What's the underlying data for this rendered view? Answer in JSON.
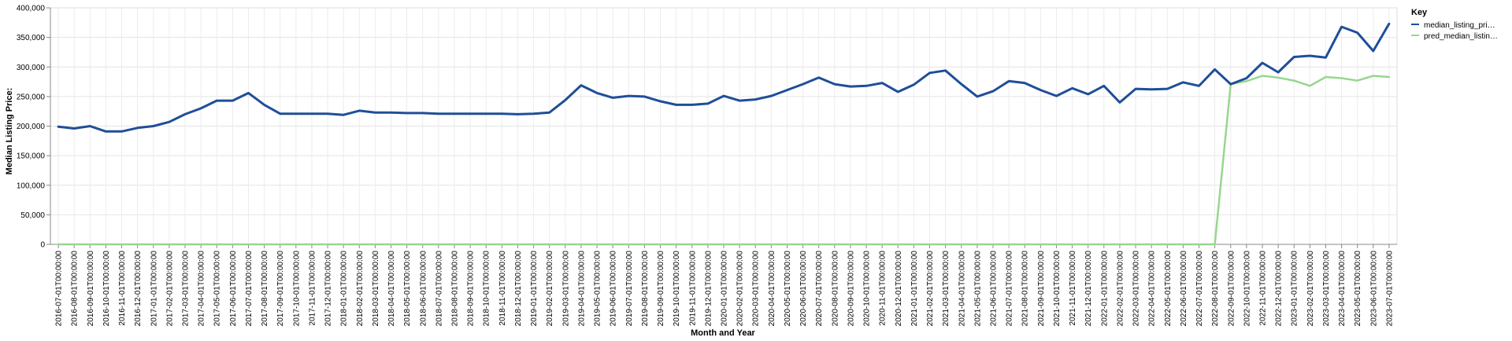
{
  "chart_data": {
    "type": "line",
    "xlabel": "Month and Year",
    "ylabel": "Median Listing Price:",
    "ylim": [
      0,
      400000
    ],
    "yticks": [
      "0",
      "50,000",
      "100,000",
      "150,000",
      "200,000",
      "250,000",
      "300,000",
      "350,000",
      "400,000"
    ],
    "grid": true,
    "legend": {
      "title": "Key",
      "placement": "top-right",
      "entries": [
        "median_listing_pri…",
        "pred_median_listin…"
      ]
    },
    "colors": [
      "#1f4e99",
      "#98d68f"
    ],
    "x": [
      "2016-07-01T00:00:00",
      "2016-08-01T00:00:00",
      "2016-09-01T00:00:00",
      "2016-10-01T00:00:00",
      "2016-11-01T00:00:00",
      "2016-12-01T00:00:00",
      "2017-01-01T00:00:00",
      "2017-02-01T00:00:00",
      "2017-03-01T00:00:00",
      "2017-04-01T00:00:00",
      "2017-05-01T00:00:00",
      "2017-06-01T00:00:00",
      "2017-07-01T00:00:00",
      "2017-08-01T00:00:00",
      "2017-09-01T00:00:00",
      "2017-10-01T00:00:00",
      "2017-11-01T00:00:00",
      "2017-12-01T00:00:00",
      "2018-01-01T00:00:00",
      "2018-02-01T00:00:00",
      "2018-03-01T00:00:00",
      "2018-04-01T00:00:00",
      "2018-05-01T00:00:00",
      "2018-06-01T00:00:00",
      "2018-07-01T00:00:00",
      "2018-08-01T00:00:00",
      "2018-09-01T00:00:00",
      "2018-10-01T00:00:00",
      "2018-11-01T00:00:00",
      "2018-12-01T00:00:00",
      "2019-01-01T00:00:00",
      "2019-02-01T00:00:00",
      "2019-03-01T00:00:00",
      "2019-04-01T00:00:00",
      "2019-05-01T00:00:00",
      "2019-06-01T00:00:00",
      "2019-07-01T00:00:00",
      "2019-08-01T00:00:00",
      "2019-09-01T00:00:00",
      "2019-10-01T00:00:00",
      "2019-11-01T00:00:00",
      "2019-12-01T00:00:00",
      "2020-01-01T00:00:00",
      "2020-02-01T00:00:00",
      "2020-03-01T00:00:00",
      "2020-04-01T00:00:00",
      "2020-05-01T00:00:00",
      "2020-06-01T00:00:00",
      "2020-07-01T00:00:00",
      "2020-08-01T00:00:00",
      "2020-09-01T00:00:00",
      "2020-10-01T00:00:00",
      "2020-11-01T00:00:00",
      "2020-12-01T00:00:00",
      "2021-01-01T00:00:00",
      "2021-02-01T00:00:00",
      "2021-03-01T00:00:00",
      "2021-04-01T00:00:00",
      "2021-05-01T00:00:00",
      "2021-06-01T00:00:00",
      "2021-07-01T00:00:00",
      "2021-08-01T00:00:00",
      "2021-09-01T00:00:00",
      "2021-10-01T00:00:00",
      "2021-11-01T00:00:00",
      "2021-12-01T00:00:00",
      "2022-01-01T00:00:00",
      "2022-02-01T00:00:00",
      "2022-03-01T00:00:00",
      "2022-04-01T00:00:00",
      "2022-05-01T00:00:00",
      "2022-06-01T00:00:00",
      "2022-07-01T00:00:00",
      "2022-08-01T00:00:00",
      "2022-09-01T00:00:00",
      "2022-10-01T00:00:00",
      "2022-11-01T00:00:00",
      "2022-12-01T00:00:00",
      "2023-01-01T00:00:00",
      "2023-02-01T00:00:00",
      "2023-03-01T00:00:00",
      "2023-04-01T00:00:00",
      "2023-05-01T00:00:00",
      "2023-06-01T00:00:00",
      "2023-07-01T00:00:00"
    ],
    "series": [
      {
        "name": "median_listing_pri…",
        "values": [
          199000,
          196000,
          200000,
          191000,
          191000,
          197000,
          200000,
          207000,
          220000,
          230000,
          243000,
          243000,
          256000,
          236000,
          221000,
          221000,
          221000,
          221000,
          219000,
          226000,
          223000,
          223000,
          222000,
          222000,
          221000,
          221000,
          221000,
          221000,
          221000,
          220000,
          221000,
          223000,
          244000,
          269000,
          256000,
          248000,
          251000,
          250000,
          242000,
          236000,
          236000,
          238000,
          251000,
          243000,
          245000,
          251000,
          261000,
          271000,
          282000,
          271000,
          267000,
          268000,
          273000,
          258000,
          270000,
          290000,
          294000,
          271000,
          250000,
          259000,
          276000,
          273000,
          261000,
          251000,
          264000,
          254000,
          268000,
          240000,
          263000,
          262000,
          263000,
          274000,
          268000,
          296000,
          271000,
          281000,
          307000,
          291000,
          317000,
          319000,
          316000,
          368000,
          358000,
          327000,
          373000
        ]
      },
      {
        "name": "pred_median_listin…",
        "values": [
          0,
          0,
          0,
          0,
          0,
          0,
          0,
          0,
          0,
          0,
          0,
          0,
          0,
          0,
          0,
          0,
          0,
          0,
          0,
          0,
          0,
          0,
          0,
          0,
          0,
          0,
          0,
          0,
          0,
          0,
          0,
          0,
          0,
          0,
          0,
          0,
          0,
          0,
          0,
          0,
          0,
          0,
          0,
          0,
          0,
          0,
          0,
          0,
          0,
          0,
          0,
          0,
          0,
          0,
          0,
          0,
          0,
          0,
          0,
          0,
          0,
          0,
          0,
          0,
          0,
          0,
          0,
          0,
          0,
          0,
          0,
          0,
          0,
          0,
          271000,
          276000,
          285000,
          282000,
          277000,
          268000,
          283000,
          281000,
          277000,
          285000,
          283000
        ]
      }
    ]
  }
}
